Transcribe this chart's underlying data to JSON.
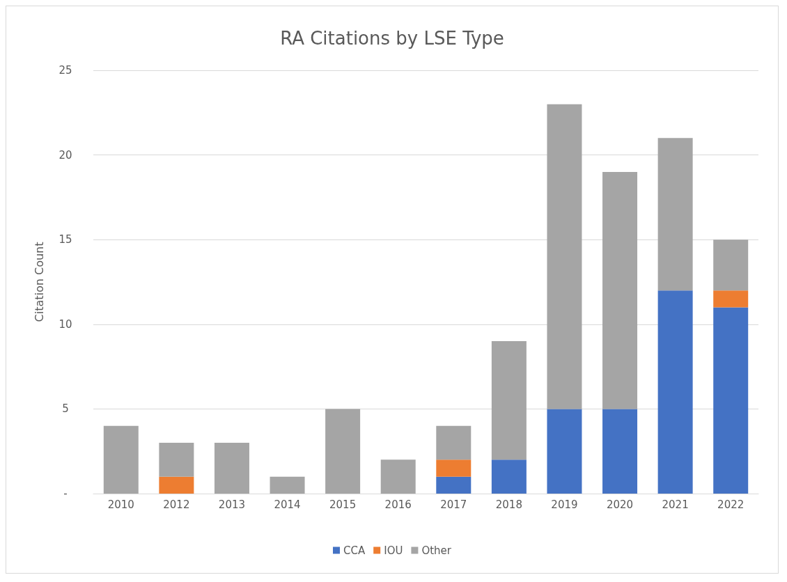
{
  "chart_data": {
    "type": "bar",
    "title": "RA Citations by LSE Type",
    "ylabel": "Citation Count",
    "stacked": true,
    "categories": [
      "2010",
      "2012",
      "2013",
      "2014",
      "2015",
      "2016",
      "2017",
      "2018",
      "2019",
      "2020",
      "2021",
      "2022"
    ],
    "series": [
      {
        "name": "CCA",
        "color": "#4472c4",
        "values": [
          0,
          0,
          0,
          0,
          0,
          0,
          1,
          2,
          5,
          5,
          12,
          11
        ]
      },
      {
        "name": "IOU",
        "color": "#ed7d31",
        "values": [
          0,
          1,
          0,
          0,
          0,
          0,
          1,
          0,
          0,
          0,
          0,
          1
        ]
      },
      {
        "name": "Other",
        "color": "#a5a5a5",
        "values": [
          4,
          2,
          3,
          1,
          5,
          2,
          2,
          7,
          18,
          14,
          9,
          3
        ]
      }
    ],
    "ylim": [
      0,
      25
    ],
    "yticks": [
      {
        "value": 0,
        "label": "-"
      },
      5,
      10,
      15,
      20,
      25
    ],
    "grid": "y",
    "legend": "bottom"
  }
}
